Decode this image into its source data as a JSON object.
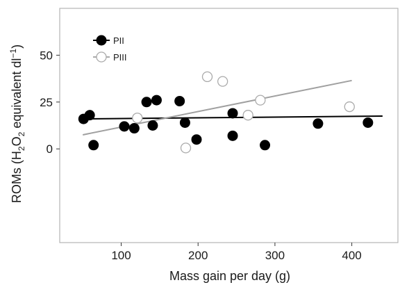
{
  "chart_data": {
    "type": "scatter",
    "xlabel": "Mass gain per day (g)",
    "ylabel": {
      "p1": "ROMs (H",
      "sub1": "2",
      "p2": "O",
      "sub2": "2",
      "p3": " equivalent dl",
      "sup": "−1",
      "p4": ")"
    },
    "xlim": [
      20,
      460
    ],
    "ylim": [
      -50,
      75
    ],
    "xticks": [
      100,
      200,
      300,
      400
    ],
    "yticks": [
      0,
      25,
      50
    ],
    "grid": false,
    "legend_position": "top-left",
    "series": [
      {
        "name": "PII",
        "marker": "filled",
        "color": "#000000",
        "points": [
          [
            51,
            16
          ],
          [
            59,
            18
          ],
          [
            64,
            2
          ],
          [
            104,
            12
          ],
          [
            117,
            11
          ],
          [
            133,
            25
          ],
          [
            141,
            12.5
          ],
          [
            146,
            26
          ],
          [
            176,
            25.5
          ],
          [
            183,
            14
          ],
          [
            198,
            5
          ],
          [
            245,
            19
          ],
          [
            245,
            7
          ],
          [
            287,
            2
          ],
          [
            356,
            13.5
          ],
          [
            421,
            14
          ]
        ],
        "trend": [
          [
            50,
            16
          ],
          [
            440,
            17.5
          ]
        ]
      },
      {
        "name": "PIII",
        "marker": "open",
        "color": "#999999",
        "points": [
          [
            121,
            16.5
          ],
          [
            184,
            0.5
          ],
          [
            212,
            38.5
          ],
          [
            232,
            36
          ],
          [
            265,
            18
          ],
          [
            281,
            26
          ],
          [
            397,
            22.5
          ]
        ],
        "trend": [
          [
            50,
            7.5
          ],
          [
            400,
            36.5
          ]
        ]
      }
    ]
  }
}
